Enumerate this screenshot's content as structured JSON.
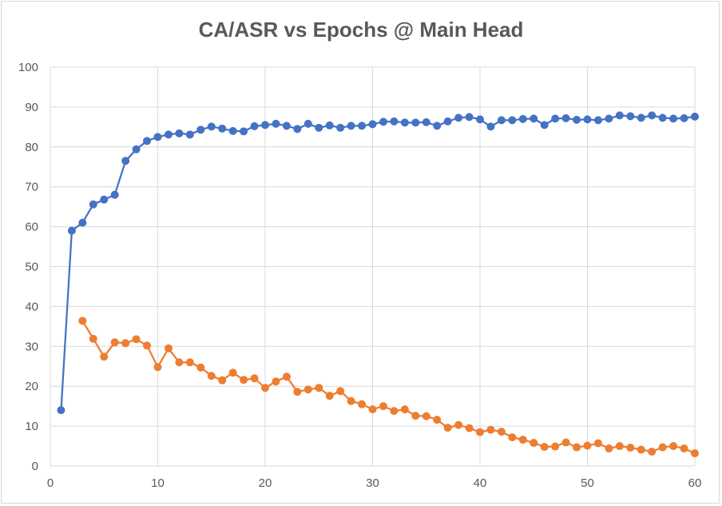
{
  "chart_data": {
    "type": "line",
    "title": "CA/ASR vs Epochs @ Main Head",
    "xlabel": "",
    "ylabel": "",
    "xlim": [
      0,
      60
    ],
    "ylim": [
      0,
      100
    ],
    "xticks": [
      "0",
      "10",
      "20",
      "30",
      "40",
      "50",
      "60"
    ],
    "yticks": [
      "0",
      "10",
      "20",
      "30",
      "40",
      "50",
      "60",
      "70",
      "80",
      "90",
      "100"
    ],
    "grid": true,
    "legend": "none",
    "series": [
      {
        "name": "CA",
        "color": "#4472c4",
        "x": [
          1,
          2,
          3,
          4,
          5,
          6,
          7,
          8,
          9,
          10,
          11,
          12,
          13,
          14,
          15,
          16,
          17,
          18,
          19,
          20,
          21,
          22,
          23,
          24,
          25,
          26,
          27,
          28,
          29,
          30,
          31,
          32,
          33,
          34,
          35,
          36,
          37,
          38,
          39,
          40,
          41,
          42,
          43,
          44,
          45,
          46,
          47,
          48,
          49,
          50,
          51,
          52,
          53,
          54,
          55,
          56,
          57,
          58,
          59,
          60
        ],
        "values": [
          14,
          59,
          61,
          65.6,
          66.8,
          68,
          76.5,
          79.4,
          81.5,
          82.5,
          83.1,
          83.4,
          83.1,
          84.3,
          85.1,
          84.6,
          84,
          83.9,
          85.2,
          85.5,
          85.8,
          85.3,
          84.5,
          85.8,
          84.8,
          85.4,
          84.8,
          85.3,
          85.3,
          85.7,
          86.3,
          86.4,
          86.1,
          86.1,
          86.2,
          85.3,
          86.4,
          87.3,
          87.5,
          86.9,
          85.1,
          86.7,
          86.7,
          87,
          87.1,
          85.5,
          87.1,
          87.2,
          86.8,
          86.9,
          86.7,
          87.1,
          87.9,
          87.7,
          87.3,
          87.9,
          87.3,
          87.1,
          87.2,
          87.6
        ]
      },
      {
        "name": "ASR",
        "color": "#ed7d31",
        "x": [
          3,
          4,
          5,
          6,
          7,
          8,
          9,
          10,
          11,
          12,
          13,
          14,
          15,
          16,
          17,
          18,
          19,
          20,
          21,
          22,
          23,
          24,
          25,
          26,
          27,
          28,
          29,
          30,
          31,
          32,
          33,
          34,
          35,
          36,
          37,
          38,
          39,
          40,
          41,
          42,
          43,
          44,
          45,
          46,
          47,
          48,
          49,
          50,
          51,
          52,
          53,
          54,
          55,
          56,
          57,
          58,
          59,
          60
        ],
        "values": [
          36.4,
          31.9,
          27.4,
          31,
          30.8,
          31.8,
          30.2,
          24.8,
          29.5,
          26,
          26,
          24.7,
          22.6,
          21.5,
          23.4,
          21.6,
          22,
          19.6,
          21.2,
          22.4,
          18.6,
          19.2,
          19.6,
          17.6,
          18.8,
          16.3,
          15.5,
          14.2,
          15,
          13.8,
          14.2,
          12.6,
          12.5,
          11.6,
          9.6,
          10.3,
          9.5,
          8.5,
          9.1,
          8.6,
          7.2,
          6.6,
          5.8,
          4.8,
          4.9,
          5.9,
          4.7,
          5.1,
          5.7,
          4.4,
          5,
          4.6,
          4.1,
          3.6,
          4.7,
          5,
          4.4,
          3.2
        ]
      }
    ]
  }
}
